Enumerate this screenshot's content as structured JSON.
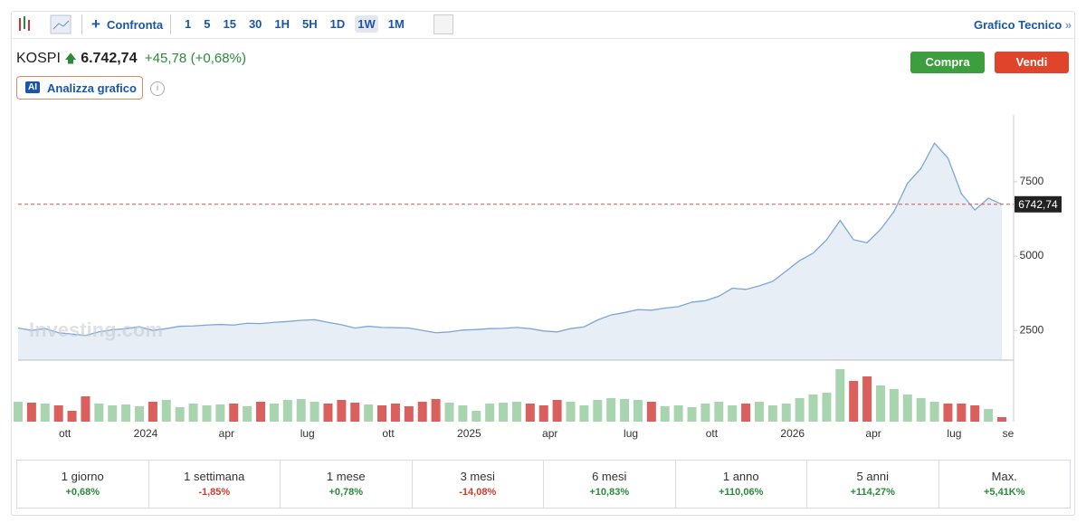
{
  "toolbar": {
    "compare": "Confronta",
    "intervals": [
      "1",
      "5",
      "15",
      "30",
      "1H",
      "5H",
      "1D",
      "1W",
      "1M"
    ],
    "active_interval": "1W",
    "technical": "Grafico Tecnico"
  },
  "quote": {
    "symbol": "KOSPI",
    "price": "6.742,74",
    "change": "+45,78",
    "change_pct": "(+0,68%)"
  },
  "buttons": {
    "buy": "Compra",
    "sell": "Vendi",
    "ai_badge": "AI",
    "ai": "Analizza grafico"
  },
  "chart_data": {
    "type": "area",
    "watermark": "Investing.com",
    "color": "#7ba7d7",
    "fill": "#e7eef6",
    "categories": [
      null,
      null,
      null,
      "ott",
      null,
      null,
      null,
      null,
      null,
      "2024",
      null,
      null,
      null,
      null,
      null,
      "apr",
      null,
      null,
      null,
      null,
      null,
      "lug",
      null,
      null,
      null,
      null,
      null,
      "ott",
      null,
      null,
      null,
      null,
      null,
      "2025",
      null,
      null,
      null,
      null,
      null,
      "apr",
      null,
      null,
      null,
      null,
      null,
      "lug",
      null,
      null,
      null,
      null,
      null,
      "ott",
      null,
      null,
      null,
      null,
      null,
      "2026",
      null,
      null,
      null,
      null,
      null,
      "apr",
      null,
      null,
      null,
      null,
      null,
      "lug",
      null,
      null,
      null,
      "se"
    ],
    "values": [
      2580,
      2500,
      2560,
      2420,
      2380,
      2330,
      2450,
      2520,
      2560,
      2620,
      2500,
      2560,
      2640,
      2650,
      2680,
      2700,
      2680,
      2740,
      2730,
      2770,
      2800,
      2840,
      2860,
      2770,
      2690,
      2580,
      2640,
      2600,
      2590,
      2580,
      2500,
      2420,
      2450,
      2510,
      2530,
      2560,
      2570,
      2600,
      2560,
      2480,
      2450,
      2560,
      2620,
      2850,
      3020,
      3100,
      3200,
      3180,
      3250,
      3300,
      3450,
      3500,
      3650,
      3920,
      3880,
      4000,
      4150,
      4500,
      4850,
      5100,
      5550,
      6200,
      5550,
      5450,
      5900,
      6500,
      7450,
      7950,
      8800,
      8300,
      7100,
      6550,
      6950,
      6742.74
    ],
    "ylim": [
      1500,
      9750
    ],
    "yticks": [
      2500,
      5000,
      7500
    ],
    "grid": false,
    "last_price": {
      "value": 6742.74,
      "label": "6742,74"
    },
    "last_price_color": "#d9534f",
    "volume": {
      "up_color": "#a8d5b0",
      "down_color": "#d9605c",
      "values": [
        22,
        21,
        20,
        18,
        12,
        28,
        20,
        18,
        19,
        17,
        22,
        24,
        16,
        20,
        18,
        19,
        20,
        17,
        22,
        20,
        24,
        25,
        22,
        20,
        24,
        21,
        19,
        18,
        20,
        17,
        22,
        25,
        21,
        18,
        12,
        20,
        21,
        22,
        20,
        18,
        24,
        22,
        18,
        24,
        26,
        25,
        24,
        22,
        17,
        18,
        16,
        20,
        22,
        18,
        20,
        22,
        18,
        20,
        26,
        30,
        32,
        58,
        45,
        50,
        40,
        36,
        30,
        26,
        22,
        20,
        20,
        18,
        14,
        5
      ]
    }
  },
  "periods": [
    {
      "label": "1 giorno",
      "change": "+0,68%"
    },
    {
      "label": "1 settimana",
      "change": "-1,85%"
    },
    {
      "label": "1 mese",
      "change": "+0,78%"
    },
    {
      "label": "3 mesi",
      "change": "-14,08%"
    },
    {
      "label": "6 mesi",
      "change": "+10,83%"
    },
    {
      "label": "1 anno",
      "change": "+110,06%"
    },
    {
      "label": "5 anni",
      "change": "+114,27%"
    },
    {
      "label": "Max.",
      "change": "+5,41K%"
    }
  ]
}
